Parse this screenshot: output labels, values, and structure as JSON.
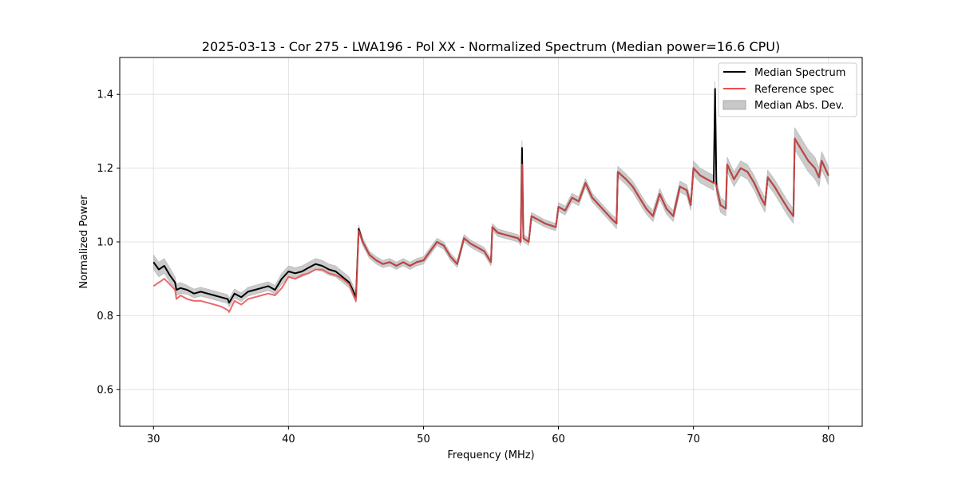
{
  "chart_data": {
    "type": "line",
    "title": "2025-03-13 - Cor 275 - LWA196 - Pol XX - Normalized Spectrum (Median power=16.6 CPU)",
    "xlabel": "Frequency (MHz)",
    "ylabel": "Normalized Power",
    "xlim": [
      27.5,
      82.5
    ],
    "ylim": [
      0.5,
      1.5
    ],
    "xticks": [
      30,
      40,
      50,
      60,
      70,
      80
    ],
    "yticks": [
      0.6,
      0.8,
      1.0,
      1.2,
      1.4
    ],
    "xtick_labels": [
      "30",
      "40",
      "50",
      "60",
      "70",
      "80"
    ],
    "ytick_labels": [
      "0.6",
      "0.8",
      "1.0",
      "1.2",
      "1.4"
    ],
    "grid": true,
    "legend_position": "top-right",
    "legend": [
      {
        "label": "Median Spectrum",
        "color": "#000000",
        "kind": "line"
      },
      {
        "label": "Reference spec",
        "color": "#e8504f",
        "kind": "line"
      },
      {
        "label": "Median Abs. Dev.",
        "color": "#c8c8c8",
        "kind": "patch"
      }
    ],
    "x": [
      30.0,
      30.4,
      30.8,
      31.2,
      31.6,
      31.7,
      32.0,
      32.5,
      33.0,
      33.5,
      34.0,
      34.5,
      35.0,
      35.5,
      35.6,
      36.0,
      36.5,
      37.0,
      37.5,
      38.0,
      38.5,
      39.0,
      39.5,
      40.0,
      40.5,
      41.0,
      41.5,
      42.0,
      42.5,
      43.0,
      43.5,
      44.0,
      44.5,
      45.0,
      45.2,
      45.5,
      46.0,
      46.5,
      47.0,
      47.5,
      48.0,
      48.5,
      49.0,
      49.5,
      50.0,
      50.5,
      51.0,
      51.5,
      52.0,
      52.5,
      53.0,
      53.5,
      54.0,
      54.5,
      55.0,
      55.1,
      55.5,
      56.0,
      56.5,
      57.0,
      57.2,
      57.3,
      57.4,
      57.8,
      58.0,
      58.5,
      59.0,
      59.8,
      60.0,
      60.5,
      61.0,
      61.5,
      62.0,
      62.5,
      63.0,
      63.5,
      64.0,
      64.3,
      64.4,
      65.0,
      65.5,
      66.0,
      66.5,
      67.0,
      67.5,
      68.0,
      68.5,
      69.0,
      69.5,
      69.8,
      70.0,
      70.5,
      71.0,
      71.5,
      71.6,
      71.7,
      72.0,
      72.4,
      72.5,
      73.0,
      73.5,
      74.0,
      74.5,
      75.0,
      75.3,
      75.5,
      76.0,
      76.5,
      77.0,
      77.4,
      77.5,
      78.0,
      78.5,
      79.0,
      79.3,
      79.5,
      80.0
    ],
    "series": [
      {
        "name": "Median Spectrum",
        "color": "#000000",
        "values": [
          0.945,
          0.925,
          0.935,
          0.91,
          0.89,
          0.87,
          0.875,
          0.87,
          0.86,
          0.865,
          0.86,
          0.855,
          0.85,
          0.845,
          0.835,
          0.86,
          0.85,
          0.865,
          0.87,
          0.875,
          0.88,
          0.87,
          0.9,
          0.92,
          0.915,
          0.92,
          0.93,
          0.94,
          0.935,
          0.925,
          0.92,
          0.905,
          0.89,
          0.85,
          1.035,
          1.0,
          0.965,
          0.95,
          0.94,
          0.945,
          0.935,
          0.945,
          0.935,
          0.945,
          0.95,
          0.975,
          1.0,
          0.99,
          0.96,
          0.94,
          1.01,
          0.995,
          0.985,
          0.975,
          0.945,
          1.04,
          1.025,
          1.02,
          1.015,
          1.01,
          1.0,
          1.255,
          1.01,
          1.0,
          1.07,
          1.06,
          1.05,
          1.04,
          1.095,
          1.085,
          1.12,
          1.11,
          1.16,
          1.12,
          1.1,
          1.08,
          1.06,
          1.05,
          1.19,
          1.17,
          1.15,
          1.12,
          1.09,
          1.07,
          1.13,
          1.09,
          1.07,
          1.15,
          1.14,
          1.1,
          1.2,
          1.18,
          1.17,
          1.16,
          1.415,
          1.15,
          1.1,
          1.09,
          1.21,
          1.17,
          1.2,
          1.19,
          1.16,
          1.12,
          1.1,
          1.175,
          1.15,
          1.12,
          1.09,
          1.07,
          1.28,
          1.25,
          1.22,
          1.2,
          1.175,
          1.22,
          1.18
        ]
      },
      {
        "name": "Reference spec",
        "color": "#e8504f",
        "values": [
          0.88,
          0.89,
          0.9,
          0.885,
          0.87,
          0.845,
          0.855,
          0.845,
          0.84,
          0.84,
          0.835,
          0.83,
          0.825,
          0.815,
          0.81,
          0.84,
          0.83,
          0.845,
          0.85,
          0.855,
          0.86,
          0.855,
          0.875,
          0.905,
          0.9,
          0.91,
          0.915,
          0.925,
          0.925,
          0.915,
          0.91,
          0.9,
          0.885,
          0.84,
          1.03,
          1.0,
          0.965,
          0.95,
          0.94,
          0.945,
          0.935,
          0.945,
          0.935,
          0.945,
          0.95,
          0.975,
          1.0,
          0.99,
          0.96,
          0.94,
          1.01,
          0.995,
          0.985,
          0.975,
          0.945,
          1.04,
          1.025,
          1.02,
          1.015,
          1.01,
          1.0,
          1.21,
          1.01,
          1.0,
          1.07,
          1.06,
          1.05,
          1.04,
          1.095,
          1.085,
          1.12,
          1.11,
          1.16,
          1.12,
          1.1,
          1.08,
          1.06,
          1.05,
          1.19,
          1.17,
          1.15,
          1.12,
          1.09,
          1.07,
          1.13,
          1.09,
          1.07,
          1.15,
          1.14,
          1.1,
          1.2,
          1.18,
          1.17,
          1.16,
          1.16,
          1.15,
          1.1,
          1.09,
          1.21,
          1.17,
          1.2,
          1.19,
          1.16,
          1.12,
          1.1,
          1.175,
          1.15,
          1.12,
          1.09,
          1.07,
          1.28,
          1.25,
          1.22,
          1.2,
          1.175,
          1.22,
          1.18
        ]
      }
    ],
    "band": {
      "name": "Median Abs. Dev.",
      "color": "#c8c8c8",
      "halfwidth": [
        0.02,
        0.02,
        0.02,
        0.02,
        0.015,
        0.015,
        0.015,
        0.012,
        0.012,
        0.012,
        0.012,
        0.012,
        0.012,
        0.012,
        0.012,
        0.012,
        0.012,
        0.012,
        0.012,
        0.012,
        0.012,
        0.012,
        0.015,
        0.015,
        0.015,
        0.015,
        0.015,
        0.015,
        0.015,
        0.015,
        0.015,
        0.015,
        0.015,
        0.015,
        0.01,
        0.01,
        0.01,
        0.01,
        0.01,
        0.01,
        0.01,
        0.01,
        0.01,
        0.01,
        0.01,
        0.01,
        0.01,
        0.01,
        0.01,
        0.01,
        0.01,
        0.01,
        0.01,
        0.01,
        0.01,
        0.01,
        0.01,
        0.01,
        0.01,
        0.01,
        0.01,
        0.02,
        0.01,
        0.01,
        0.01,
        0.01,
        0.01,
        0.01,
        0.012,
        0.012,
        0.012,
        0.012,
        0.012,
        0.012,
        0.012,
        0.012,
        0.012,
        0.015,
        0.015,
        0.015,
        0.015,
        0.015,
        0.015,
        0.015,
        0.015,
        0.015,
        0.015,
        0.015,
        0.015,
        0.015,
        0.02,
        0.02,
        0.02,
        0.02,
        0.02,
        0.02,
        0.02,
        0.02,
        0.02,
        0.02,
        0.02,
        0.02,
        0.02,
        0.02,
        0.02,
        0.02,
        0.02,
        0.02,
        0.02,
        0.02,
        0.03,
        0.03,
        0.03,
        0.03,
        0.025,
        0.025,
        0.025
      ]
    }
  }
}
